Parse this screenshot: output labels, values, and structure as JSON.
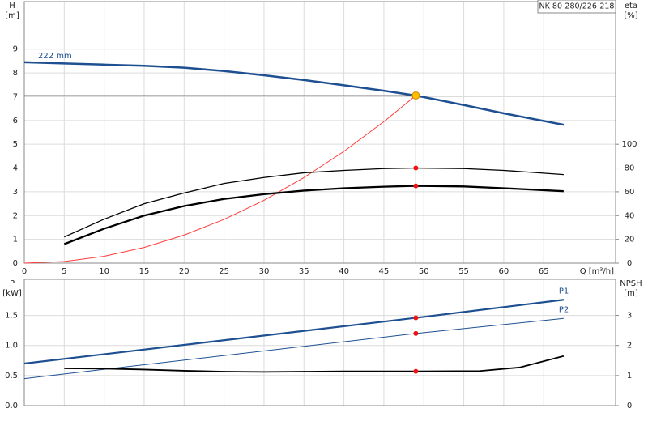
{
  "chart_data": [
    {
      "type": "line",
      "title": "NK 80-280/226-218",
      "ylabel": [
        "H",
        "[m]"
      ],
      "y2label": [
        "eta",
        "[%]"
      ],
      "xlabel": "Q [m³/h]",
      "xlim": [
        0,
        74
      ],
      "ylim": [
        0,
        11
      ],
      "y2lim": [
        0,
        220
      ],
      "xticks": [
        0,
        5,
        10,
        15,
        20,
        25,
        30,
        35,
        40,
        45,
        50,
        55,
        60,
        65
      ],
      "yticks": [
        0,
        1,
        2,
        3,
        4,
        5,
        6,
        7,
        8,
        9
      ],
      "y2ticks": [
        0,
        20,
        40,
        60,
        80,
        100
      ],
      "grid": true,
      "series": [
        {
          "name": "222 mm",
          "color": "#1d4f91",
          "width": 2.5,
          "x": [
            0,
            5,
            10,
            15,
            20,
            25,
            30,
            35,
            40,
            45,
            49,
            55,
            60,
            67.5
          ],
          "values": [
            8.45,
            8.4,
            8.35,
            8.3,
            8.22,
            8.08,
            7.9,
            7.7,
            7.48,
            7.25,
            7.05,
            6.65,
            6.3,
            5.82
          ]
        },
        {
          "color": "#ff3b3b",
          "width": 1,
          "x": [
            0,
            5,
            10,
            15,
            20,
            25,
            30,
            35,
            40,
            45,
            49
          ],
          "values": [
            0,
            0.07,
            0.29,
            0.66,
            1.18,
            1.84,
            2.64,
            3.6,
            4.7,
            5.95,
            7.05
          ]
        },
        {
          "color": "#000000",
          "width": 1.3,
          "axis": "y2",
          "x": [
            5,
            10,
            15,
            20,
            25,
            30,
            35,
            40,
            45,
            49,
            55,
            60,
            67.5
          ],
          "values": [
            22,
            37,
            50,
            59,
            67,
            72,
            76,
            78,
            79.5,
            80,
            79.5,
            78,
            74.5
          ]
        },
        {
          "color": "#000000",
          "width": 2.3,
          "axis": "y2",
          "x": [
            5,
            10,
            15,
            20,
            25,
            30,
            35,
            40,
            45,
            49,
            55,
            60,
            67.5
          ],
          "values": [
            16,
            29,
            40,
            48,
            54,
            58,
            61,
            63,
            64.3,
            65,
            64.5,
            63,
            60.5
          ]
        }
      ],
      "markers": [
        {
          "x": 49,
          "y": 7.05,
          "color": "#ffc000"
        },
        {
          "x": 49,
          "y": 80,
          "axis": "y2",
          "color": "#ee1111"
        },
        {
          "x": 49,
          "y": 65,
          "axis": "y2",
          "color": "#ee1111"
        }
      ]
    },
    {
      "type": "line",
      "ylabel": [
        "P",
        "[kW]"
      ],
      "y2label": [
        "NPSH",
        "[m]"
      ],
      "xlim": [
        0,
        74
      ],
      "ylim": [
        0,
        2.1
      ],
      "y2lim": [
        0,
        4.2
      ],
      "xticks": [
        0,
        5,
        10,
        15,
        20,
        25,
        30,
        35,
        40,
        45,
        50,
        55,
        60,
        65
      ],
      "yticks": [
        {
          "value": 0,
          "label": "0.0"
        },
        0.5,
        {
          "value": 1,
          "label": "1.0"
        },
        1.5
      ],
      "y2ticks": [
        0,
        1,
        2,
        3
      ],
      "grid": true,
      "series": [
        {
          "name": "P1",
          "color": "#1d4f91",
          "width": 2.2,
          "x": [
            0,
            49,
            67.5
          ],
          "values": [
            0.7,
            1.46,
            1.76
          ]
        },
        {
          "name": "P2",
          "color": "#1d4f91",
          "width": 1,
          "x": [
            0,
            49,
            67.5
          ],
          "values": [
            0.45,
            1.2,
            1.45
          ]
        },
        {
          "color": "#000000",
          "width": 1.8,
          "axis": "y2",
          "x": [
            5,
            10,
            15,
            20,
            25,
            30,
            35,
            40,
            45,
            49,
            57,
            62,
            67.5
          ],
          "values": [
            1.24,
            1.23,
            1.2,
            1.16,
            1.13,
            1.12,
            1.13,
            1.14,
            1.14,
            1.14,
            1.15,
            1.27,
            1.65
          ]
        }
      ],
      "markers": [
        {
          "x": 49,
          "y": 1.46,
          "color": "#ee1111"
        },
        {
          "x": 49,
          "y": 1.2,
          "color": "#ee1111"
        },
        {
          "x": 49,
          "y": 1.14,
          "axis": "y2",
          "color": "#ee1111"
        }
      ]
    }
  ]
}
